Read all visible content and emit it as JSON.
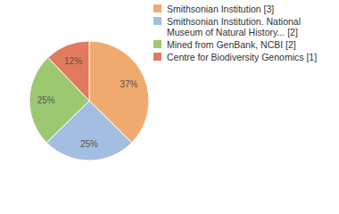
{
  "chart_data": {
    "type": "pie",
    "categories": [
      "Smithsonian Institution [3]",
      "Smithsonian Institution. National Museum of Natural History... [2]",
      "Mined from GenBank, NCBI [2]",
      "Centre for Biodiversity Genomics [1]"
    ],
    "values": [
      37,
      25,
      25,
      12
    ],
    "value_labels": [
      "37%",
      "25%",
      "25%",
      "12%"
    ],
    "colors": [
      "#f0aa6e",
      "#a4bde2",
      "#9dc872",
      "#e07b5c"
    ],
    "data_labels": true,
    "legend": "top-right"
  }
}
